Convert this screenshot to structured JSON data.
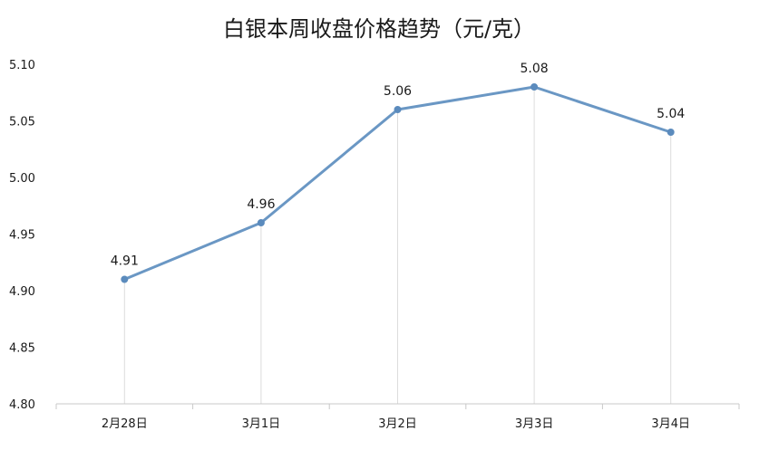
{
  "chart_data": {
    "type": "line",
    "title": "白银本周收盘价格趋势（元/克）",
    "xlabel": "",
    "ylabel": "",
    "categories": [
      "2月28日",
      "3月1日",
      "3月2日",
      "3月3日",
      "3月4日"
    ],
    "series": [
      {
        "values": [
          4.91,
          4.96,
          5.06,
          5.08,
          5.04
        ]
      }
    ],
    "data_labels": [
      "4.91",
      "4.96",
      "5.06",
      "5.08",
      "5.04"
    ],
    "ylim": [
      4.8,
      5.1
    ],
    "yticks": [
      "4.80",
      "4.85",
      "4.90",
      "4.95",
      "5.00",
      "5.05",
      "5.10"
    ],
    "grid": "vertical drop lines at data points",
    "legend": "none",
    "colors": {
      "line": "#6a97c4",
      "marker": "#5b8bbd",
      "axis": "#c8c8c8",
      "dropline": "#dcdcdc"
    }
  }
}
